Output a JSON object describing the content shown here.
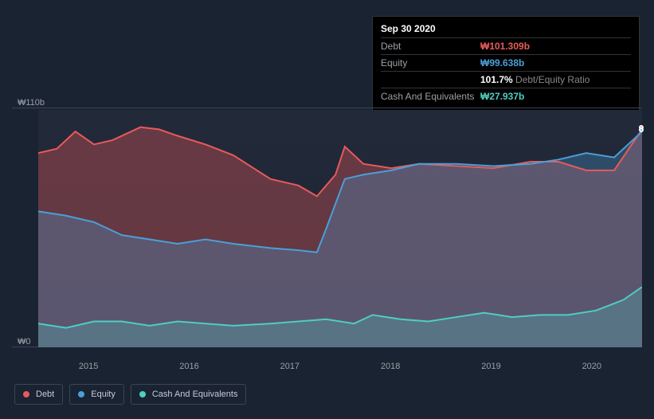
{
  "tooltip": {
    "date": "Sep 30 2020",
    "rows": [
      {
        "label": "Debt",
        "value": "₩101.309b",
        "cls": "debt"
      },
      {
        "label": "Equity",
        "value": "₩99.638b",
        "cls": "equity"
      },
      {
        "label": "",
        "value": "101.7%",
        "suffix": " Debt/Equity Ratio",
        "cls": "ratio"
      },
      {
        "label": "Cash And Equivalents",
        "value": "₩27.937b",
        "cls": "cash"
      }
    ]
  },
  "yaxis": {
    "top": "₩110b",
    "bottom": "₩0",
    "max": 110
  },
  "xaxis": {
    "ticks": [
      "2015",
      "2016",
      "2017",
      "2018",
      "2019",
      "2020"
    ]
  },
  "legend": [
    {
      "label": "Debt",
      "color": "#e85a5a"
    },
    {
      "label": "Equity",
      "color": "#4a9fd8"
    },
    {
      "label": "Cash And Equivalents",
      "color": "#4ecdc4"
    }
  ],
  "chart": {
    "type": "area",
    "background_color": "#1a2332",
    "grid_color": "#3a4555",
    "text_color": "#9aa0a6",
    "line_width": 2,
    "xlim": [
      2014.5,
      2021.0
    ],
    "ylim": [
      0,
      110
    ],
    "series": {
      "debt": {
        "color": "#e85a5a",
        "fill": "rgba(232,90,90,0.35)",
        "data": [
          [
            2014.5,
            90
          ],
          [
            2014.7,
            92
          ],
          [
            2014.9,
            100
          ],
          [
            2015.1,
            94
          ],
          [
            2015.3,
            96
          ],
          [
            2015.6,
            102
          ],
          [
            2015.8,
            101
          ],
          [
            2016.0,
            98
          ],
          [
            2016.3,
            94
          ],
          [
            2016.6,
            89
          ],
          [
            2017.0,
            78
          ],
          [
            2017.3,
            75
          ],
          [
            2017.5,
            70
          ],
          [
            2017.7,
            80
          ],
          [
            2017.8,
            93
          ],
          [
            2018.0,
            85
          ],
          [
            2018.3,
            83
          ],
          [
            2018.6,
            85
          ],
          [
            2019.0,
            84
          ],
          [
            2019.4,
            83
          ],
          [
            2019.8,
            86
          ],
          [
            2020.1,
            86
          ],
          [
            2020.4,
            82
          ],
          [
            2020.7,
            82
          ],
          [
            2021.0,
            101
          ]
        ]
      },
      "equity": {
        "color": "#4a9fd8",
        "fill": "rgba(74,159,216,0.30)",
        "data": [
          [
            2014.5,
            63
          ],
          [
            2014.8,
            61
          ],
          [
            2015.1,
            58
          ],
          [
            2015.4,
            52
          ],
          [
            2015.7,
            50
          ],
          [
            2016.0,
            48
          ],
          [
            2016.3,
            50
          ],
          [
            2016.6,
            48
          ],
          [
            2017.0,
            46
          ],
          [
            2017.3,
            45
          ],
          [
            2017.5,
            44
          ],
          [
            2017.6,
            55
          ],
          [
            2017.8,
            78
          ],
          [
            2018.0,
            80
          ],
          [
            2018.3,
            82
          ],
          [
            2018.6,
            85
          ],
          [
            2019.0,
            85
          ],
          [
            2019.4,
            84
          ],
          [
            2019.8,
            85
          ],
          [
            2020.1,
            87
          ],
          [
            2020.4,
            90
          ],
          [
            2020.7,
            88
          ],
          [
            2021.0,
            100
          ]
        ]
      },
      "cash": {
        "color": "#4ecdc4",
        "fill": "rgba(78,205,196,0.25)",
        "data": [
          [
            2014.5,
            11
          ],
          [
            2014.8,
            9
          ],
          [
            2015.1,
            12
          ],
          [
            2015.4,
            12
          ],
          [
            2015.7,
            10
          ],
          [
            2016.0,
            12
          ],
          [
            2016.3,
            11
          ],
          [
            2016.6,
            10
          ],
          [
            2017.0,
            11
          ],
          [
            2017.3,
            12
          ],
          [
            2017.6,
            13
          ],
          [
            2017.9,
            11
          ],
          [
            2018.1,
            15
          ],
          [
            2018.4,
            13
          ],
          [
            2018.7,
            12
          ],
          [
            2019.0,
            14
          ],
          [
            2019.3,
            16
          ],
          [
            2019.6,
            14
          ],
          [
            2019.9,
            15
          ],
          [
            2020.2,
            15
          ],
          [
            2020.5,
            17
          ],
          [
            2020.8,
            22
          ],
          [
            2021.0,
            28
          ]
        ]
      }
    }
  }
}
